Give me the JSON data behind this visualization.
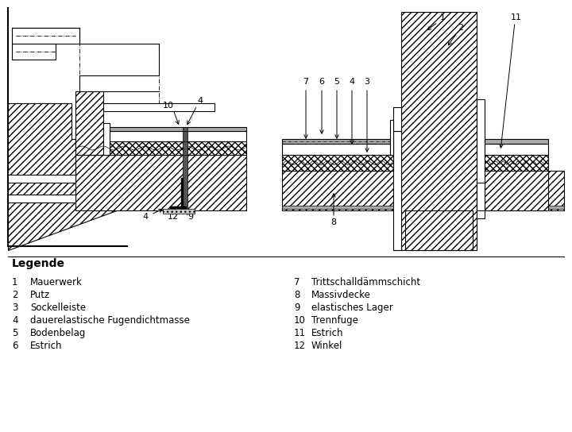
{
  "legend_title": "Legende",
  "legend_items_left": [
    [
      "1",
      "Mauerwerk"
    ],
    [
      "2",
      "Putz"
    ],
    [
      "3",
      "Sockelleiste"
    ],
    [
      "4",
      "dauerelastische Fugendichtmasse"
    ],
    [
      "5",
      "Bodenbelag"
    ],
    [
      "6",
      "Estrich"
    ]
  ],
  "legend_items_right": [
    [
      "7",
      "Trittschalldämmschicht"
    ],
    [
      "8",
      "Massivdecke"
    ],
    [
      "9",
      "elastisches Lager"
    ],
    [
      "10",
      "Trennfuge"
    ],
    [
      "11",
      "Estrich"
    ],
    [
      "12",
      "Winkel"
    ]
  ],
  "bg_color": "#ffffff"
}
